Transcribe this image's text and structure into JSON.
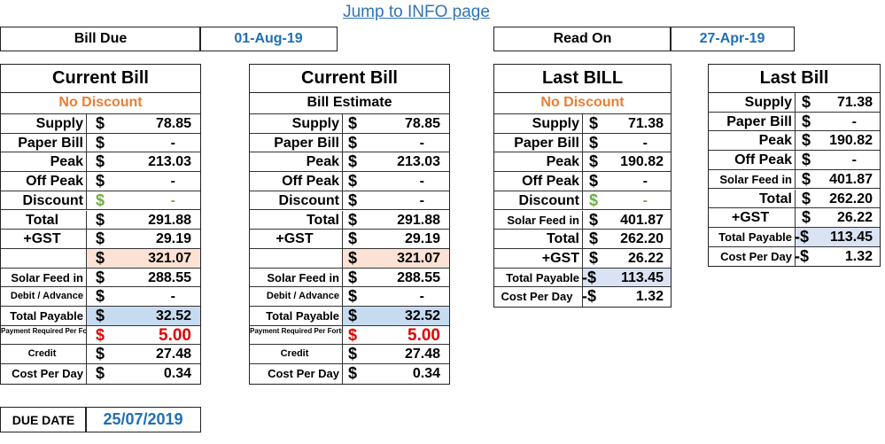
{
  "link": "Jump to INFO page",
  "bill_due": {
    "label": "Bill Due",
    "value": "01-Aug-19"
  },
  "read_on": {
    "label": "Read On",
    "value": "27-Apr-19"
  },
  "due_date": {
    "label": "DUE DATE",
    "value": "25/07/2019"
  },
  "tables": [
    {
      "title": "Current Bill",
      "subtitle": "No Discount",
      "rows": [
        {
          "label": "Supply",
          "sign": "$",
          "value": "78.85"
        },
        {
          "label": "Paper Bill",
          "sign": "$",
          "value": "-"
        },
        {
          "label": "Peak",
          "sign": "$",
          "value": "213.03"
        },
        {
          "label": "Off Peak",
          "sign": "$",
          "value": "-"
        },
        {
          "label": "Discount",
          "sign": "$",
          "value": "-",
          "color": "green"
        },
        {
          "label": "Total",
          "sign": "$",
          "value": "291.88",
          "center": true
        },
        {
          "label": "+GST",
          "sign": "$",
          "value": "29.19",
          "center": true
        },
        {
          "label": "",
          "sign": "$",
          "value": "321.07",
          "bg": "peach"
        },
        {
          "label": "Solar Feed in",
          "sign": "$",
          "value": "288.55",
          "size": "s"
        },
        {
          "label": "Debit / Advance",
          "sign": "$",
          "value": "-",
          "size": "xss"
        },
        {
          "label": "Total Payable",
          "sign": "$",
          "value": "32.52",
          "bg": "bluebg",
          "size": "s"
        },
        {
          "label": "Payment Required Per Fortnight Pay on Time",
          "sign": "$",
          "value": "5.00",
          "color": "red",
          "size": "xs"
        },
        {
          "label": "Credit",
          "sign": "$",
          "value": "27.48",
          "size": "xss",
          "center": true
        },
        {
          "label": "Cost Per Day",
          "sign": "$",
          "value": "0.34",
          "size": "s"
        }
      ]
    },
    {
      "title": "Current Bill",
      "subtitle": "Bill Estimate",
      "subtitle_black": true,
      "rows": [
        {
          "label": "Supply",
          "sign": "$",
          "value": "78.85"
        },
        {
          "label": "Paper Bill",
          "sign": "$",
          "value": "-"
        },
        {
          "label": "Peak",
          "sign": "$",
          "value": "213.03"
        },
        {
          "label": "Off Peak",
          "sign": "$",
          "value": "-"
        },
        {
          "label": "Discount",
          "sign": "$",
          "value": "-"
        },
        {
          "label": "Total",
          "sign": "$",
          "value": "291.88"
        },
        {
          "label": "+GST",
          "sign": "$",
          "value": "29.19",
          "center": true
        },
        {
          "label": "",
          "sign": "$",
          "value": "321.07",
          "bg": "peach"
        },
        {
          "label": "Solar Feed in",
          "sign": "$",
          "value": "288.55",
          "size": "s"
        },
        {
          "label": "Debit / Advance",
          "sign": "$",
          "value": "-",
          "size": "xss"
        },
        {
          "label": "Total Payable",
          "sign": "$",
          "value": "32.52",
          "bg": "bluebg",
          "size": "s"
        },
        {
          "label": "Payment Required Per Fortnight",
          "sign": "$",
          "value": "5.00",
          "color": "red",
          "size": "xs"
        },
        {
          "label": "Credit",
          "sign": "$",
          "value": "27.48",
          "size": "xss",
          "center": true
        },
        {
          "label": "Cost Per Day",
          "sign": "$",
          "value": "0.34",
          "size": "s"
        }
      ]
    },
    {
      "title": "Last BILL",
      "subtitle": "No Discount",
      "rows": [
        {
          "label": "Supply",
          "sign": "$",
          "value": "71.38"
        },
        {
          "label": "Paper Bill",
          "sign": "$",
          "value": "-"
        },
        {
          "label": "Peak",
          "sign": "$",
          "value": "190.82"
        },
        {
          "label": "Off Peak",
          "sign": "$",
          "value": "-"
        },
        {
          "label": "Discount",
          "sign": "$",
          "value": "-",
          "color": "green"
        },
        {
          "label": "Solar Feed in",
          "sign": "$",
          "value": "401.87",
          "size": "s"
        },
        {
          "label": "Total",
          "sign": "$",
          "value": "262.20"
        },
        {
          "label": "+GST",
          "sign": "$",
          "value": "26.22"
        },
        {
          "label": "Total Payable",
          "sign": "-$",
          "value": "113.45",
          "bg": "lbluebg",
          "size": "s"
        },
        {
          "label": "Cost Per Day",
          "sign": "-$",
          "value": "1.32",
          "size": "s",
          "center": true
        }
      ]
    },
    {
      "title": "Last Bill",
      "rows": [
        {
          "label": "Supply",
          "sign": "$",
          "value": "71.38"
        },
        {
          "label": "Paper Bill",
          "sign": "$",
          "value": "-"
        },
        {
          "label": "Peak",
          "sign": "$",
          "value": "190.82"
        },
        {
          "label": "Off Peak",
          "sign": "$",
          "value": "-"
        },
        {
          "label": "Solar Feed in",
          "sign": "$",
          "value": "401.87",
          "size": "s"
        },
        {
          "label": "Total",
          "sign": "$",
          "value": "262.20"
        },
        {
          "label": "+GST",
          "sign": "$",
          "value": "26.22",
          "center": true
        },
        {
          "label": "Total Payable",
          "sign": "-$",
          "value": "113.45",
          "bg": "lbluebg",
          "size": "s"
        },
        {
          "label": "Cost Per Day",
          "sign": "-$",
          "value": "1.32",
          "size": "s"
        }
      ]
    }
  ]
}
